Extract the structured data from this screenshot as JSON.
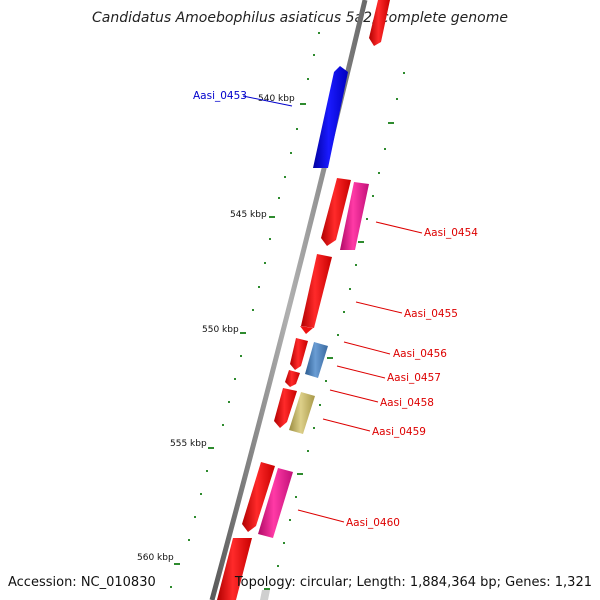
{
  "title": "Candidatus Amoebophilus asiaticus 5a2, complete genome",
  "accession": "Accession: NC_010830",
  "topology": "Topology: circular; Length: 1,884,364 bp; Genes: 1,321",
  "colors": {
    "backbone": "#8a8a8a",
    "tick": "#2e8b2e",
    "gene_red": "#ee1111",
    "gene_blue": "#0000ee",
    "gene_pink": "#ee1a8c",
    "gene_steel": "#4a7fb8",
    "gene_khaki": "#c7b96a",
    "label_red": "#dd0000",
    "label_blue": "#0000cc"
  },
  "position_labels": [
    {
      "text": "540 kbp",
      "kbp": 540
    },
    {
      "text": "545 kbp",
      "kbp": 545
    },
    {
      "text": "550 kbp",
      "kbp": 550
    },
    {
      "text": "555 kbp",
      "kbp": 555
    },
    {
      "text": "560 kbp",
      "kbp": 560
    }
  ],
  "genes": [
    {
      "id": "Aasi_0453",
      "labelled": true,
      "color": "gene_blue",
      "strand": "outer-left"
    },
    {
      "id": "Aasi_0454",
      "labelled": true,
      "color": "gene_pink",
      "strand": "inner-right"
    },
    {
      "id": "Aasi_0455",
      "labelled": true,
      "color": "gene_red",
      "strand": "inner-right"
    },
    {
      "id": "Aasi_0456",
      "labelled": true,
      "color": "gene_red",
      "strand": "inner-right"
    },
    {
      "id": "Aasi_0457",
      "labelled": true,
      "color": "gene_steel",
      "strand": "inner-right"
    },
    {
      "id": "Aasi_0458",
      "labelled": true,
      "color": "gene_red",
      "strand": "inner-right"
    },
    {
      "id": "Aasi_0459",
      "labelled": true,
      "color": "gene_khaki",
      "strand": "inner-right"
    },
    {
      "id": "Aasi_0460",
      "labelled": true,
      "color": "gene_pink",
      "strand": "inner-right"
    }
  ]
}
